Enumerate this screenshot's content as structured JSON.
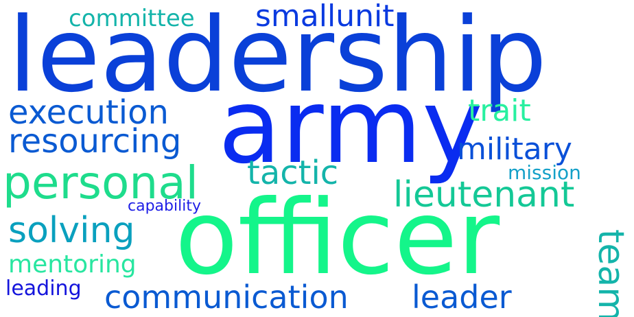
{
  "words": [
    {
      "id": "leadership",
      "text": "leadership",
      "color": "#0a40d8"
    },
    {
      "id": "army",
      "text": "army",
      "color": "#0a2cf0"
    },
    {
      "id": "officer",
      "text": "officer",
      "color": "#14f58a"
    },
    {
      "id": "personal",
      "text": "personal",
      "color": "#1edc8c"
    },
    {
      "id": "communication",
      "text": "communication",
      "color": "#0a5ad2"
    },
    {
      "id": "leader",
      "text": "leader",
      "color": "#0a5ad2"
    },
    {
      "id": "lieutenant",
      "text": "lieutenant",
      "color": "#14c896"
    },
    {
      "id": "execution",
      "text": "execution",
      "color": "#0a5ad2"
    },
    {
      "id": "resourcing",
      "text": "resourcing",
      "color": "#0a5ad2"
    },
    {
      "id": "solving",
      "text": "solving",
      "color": "#0aa0be"
    },
    {
      "id": "military",
      "text": "military",
      "color": "#0a50d8"
    },
    {
      "id": "tactic",
      "text": "tactic",
      "color": "#14b4aa"
    },
    {
      "id": "smallunit",
      "text": "smallunit",
      "color": "#0a3ae0"
    },
    {
      "id": "committee",
      "text": "committee",
      "color": "#14b4aa"
    },
    {
      "id": "trait",
      "text": "trait",
      "color": "#28f0a0"
    },
    {
      "id": "mentoring",
      "text": "mentoring",
      "color": "#28e6a0"
    },
    {
      "id": "leading",
      "text": "leading",
      "color": "#1414dc"
    },
    {
      "id": "mission",
      "text": "mission",
      "color": "#14a0c8"
    },
    {
      "id": "capability",
      "text": "capability",
      "color": "#1e1ee6"
    },
    {
      "id": "team",
      "text": "team",
      "color": "#14b4aa"
    }
  ]
}
